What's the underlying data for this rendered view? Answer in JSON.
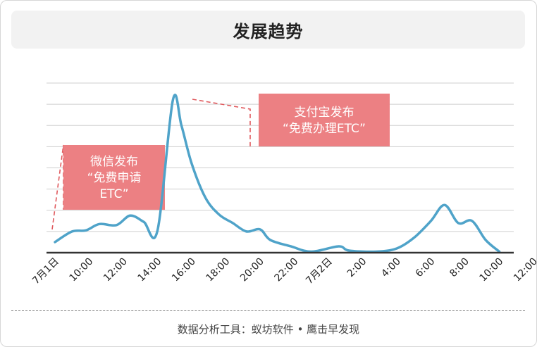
{
  "chart_data": {
    "type": "line",
    "title": "发展趋势",
    "x": [
      "7月1日",
      "10:00",
      "12:00",
      "14:00",
      "16:00",
      "18:00",
      "20:00",
      "22:00",
      "7月2日",
      "2:00",
      "4:00",
      "6:00",
      "8:00",
      "10:00",
      "12:00"
    ],
    "series": [
      {
        "values": [
          [
            0,
            0.5
          ],
          [
            0.5,
            1.0
          ],
          [
            0.9,
            1.05
          ],
          [
            1.3,
            1.35
          ],
          [
            1.8,
            1.3
          ],
          [
            2.2,
            1.75
          ],
          [
            2.6,
            1.45
          ],
          [
            3.0,
            1.05
          ],
          [
            3.45,
            7.2
          ],
          [
            3.7,
            6.0
          ],
          [
            4.0,
            4.2
          ],
          [
            4.4,
            2.6
          ],
          [
            4.8,
            1.8
          ],
          [
            5.2,
            1.4
          ],
          [
            5.6,
            1.0
          ],
          [
            6.0,
            1.1
          ],
          [
            6.3,
            0.6
          ],
          [
            6.9,
            0.3
          ],
          [
            7.5,
            0.05
          ],
          [
            8.3,
            0.3
          ],
          [
            8.6,
            0.1
          ],
          [
            9.4,
            0.05
          ],
          [
            10.0,
            0.2
          ],
          [
            10.5,
            0.7
          ],
          [
            11.0,
            1.5
          ],
          [
            11.4,
            2.25
          ],
          [
            11.8,
            1.4
          ],
          [
            12.2,
            1.5
          ],
          [
            12.6,
            0.6
          ],
          [
            13.0,
            0.05
          ]
        ],
        "color": "#4fa3c9"
      }
    ],
    "ylim": [
      0,
      8
    ],
    "grid": true,
    "annotations": [
      {
        "text_lines": [
          "微信发布",
          "“免费申请",
          "ETC”"
        ],
        "x": 0.5,
        "color": "#ec8083"
      },
      {
        "text_lines": [
          "支付宝发布",
          "“免费办理ETC”"
        ],
        "x": 5.0,
        "color": "#ec8083"
      }
    ]
  },
  "footer": {
    "source": "数据分析工具：蚁坊软件 • 鹰击早发现"
  }
}
